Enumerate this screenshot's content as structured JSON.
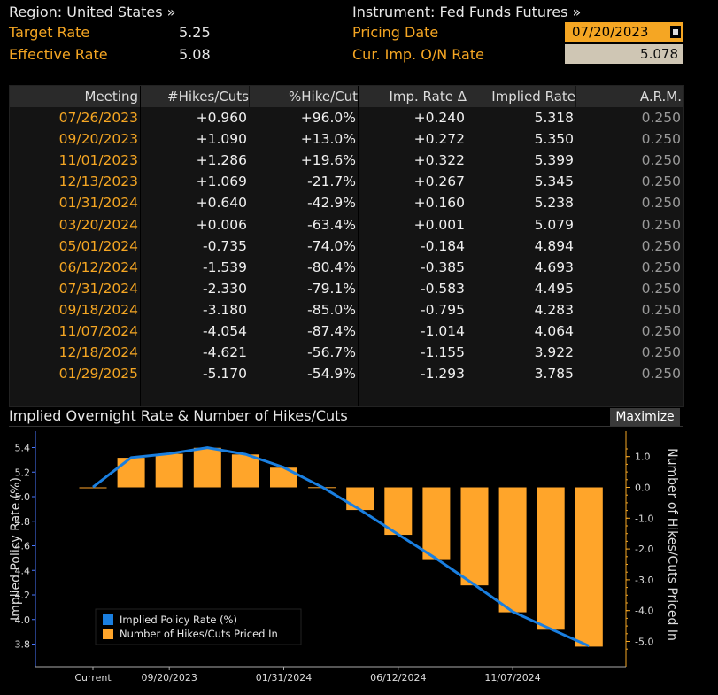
{
  "header": {
    "region": "Region: United States »",
    "instrument": "Instrument: Fed Funds Futures »",
    "target_rate_label": "Target Rate",
    "target_rate_value": "5.25",
    "effective_rate_label": "Effective Rate",
    "effective_rate_value": "5.08",
    "pricing_date_label": "Pricing Date",
    "pricing_date_value": "07/20/2023",
    "cur_imp_label": "Cur. Imp. O/N Rate",
    "cur_imp_value": "5.078"
  },
  "table": {
    "headers": [
      "Meeting",
      "#Hikes/Cuts",
      "%Hike/Cut",
      "Imp. Rate Δ",
      "Implied Rate",
      "A.R.M."
    ],
    "rows": [
      [
        "07/26/2023",
        "+0.960",
        "+96.0%",
        "+0.240",
        "5.318",
        "0.250"
      ],
      [
        "09/20/2023",
        "+1.090",
        "+13.0%",
        "+0.272",
        "5.350",
        "0.250"
      ],
      [
        "11/01/2023",
        "+1.286",
        "+19.6%",
        "+0.322",
        "5.399",
        "0.250"
      ],
      [
        "12/13/2023",
        "+1.069",
        "-21.7%",
        "+0.267",
        "5.345",
        "0.250"
      ],
      [
        "01/31/2024",
        "+0.640",
        "-42.9%",
        "+0.160",
        "5.238",
        "0.250"
      ],
      [
        "03/20/2024",
        "+0.006",
        "-63.4%",
        "+0.001",
        "5.079",
        "0.250"
      ],
      [
        "05/01/2024",
        "-0.735",
        "-74.0%",
        "-0.184",
        "4.894",
        "0.250"
      ],
      [
        "06/12/2024",
        "-1.539",
        "-80.4%",
        "-0.385",
        "4.693",
        "0.250"
      ],
      [
        "07/31/2024",
        "-2.330",
        "-79.1%",
        "-0.583",
        "4.495",
        "0.250"
      ],
      [
        "09/18/2024",
        "-3.180",
        "-85.0%",
        "-0.795",
        "4.283",
        "0.250"
      ],
      [
        "11/07/2024",
        "-4.054",
        "-87.4%",
        "-1.014",
        "4.064",
        "0.250"
      ],
      [
        "12/18/2024",
        "-4.621",
        "-56.7%",
        "-1.155",
        "3.922",
        "0.250"
      ],
      [
        "01/29/2025",
        "-5.170",
        "-54.9%",
        "-1.293",
        "3.785",
        "0.250"
      ]
    ]
  },
  "chart_title": "Implied Overnight Rate & Number of Hikes/Cuts",
  "maximize_label": "Maximize",
  "colors": {
    "accent": "#f5a623",
    "line": "#1a7fe0",
    "bar": "#ffa52a"
  },
  "chart_data": {
    "type": "bar",
    "categories": [
      "Current",
      "07/26/2023",
      "09/20/2023",
      "11/01/2023",
      "12/13/2023",
      "01/31/2024",
      "03/20/2024",
      "05/01/2024",
      "06/12/2024",
      "07/31/2024",
      "09/18/2024",
      "11/07/2024",
      "12/18/2024",
      "01/29/2025"
    ],
    "x_tick_labels": [
      "Current",
      "09/20/2023",
      "01/31/2024",
      "06/12/2024",
      "11/07/2024"
    ],
    "x_tick_categories": [
      "Current",
      "09/20/2023",
      "01/31/2024",
      "06/12/2024",
      "11/07/2024"
    ],
    "series": [
      {
        "name": "Implied Policy Rate (%)",
        "type": "line",
        "axis": "left",
        "values": [
          5.078,
          5.318,
          5.35,
          5.399,
          5.345,
          5.238,
          5.079,
          4.894,
          4.693,
          4.495,
          4.283,
          4.064,
          3.922,
          3.785
        ]
      },
      {
        "name": "Number of Hikes/Cuts Priced In",
        "type": "bar",
        "axis": "right",
        "values": [
          0.0,
          0.96,
          1.09,
          1.286,
          1.069,
          0.64,
          0.006,
          -0.735,
          -1.539,
          -2.33,
          -3.18,
          -4.054,
          -4.621,
          -5.17
        ]
      }
    ],
    "ylabel": "Implied Policy Rate (%)",
    "y2label": "Number of Hikes/Cuts Priced In",
    "ylim": [
      3.8,
      5.4
    ],
    "y_ticks": [
      "5.4",
      "5.2",
      "5.0",
      "4.8",
      "4.6",
      "4.4",
      "4.2",
      "4.0",
      "3.8"
    ],
    "y2_ticks": [
      "1.0",
      "0.0",
      "-1.0",
      "-2.0",
      "-3.0",
      "-4.0",
      "-5.0"
    ],
    "legend_position": "bottom-left",
    "grid": false
  }
}
